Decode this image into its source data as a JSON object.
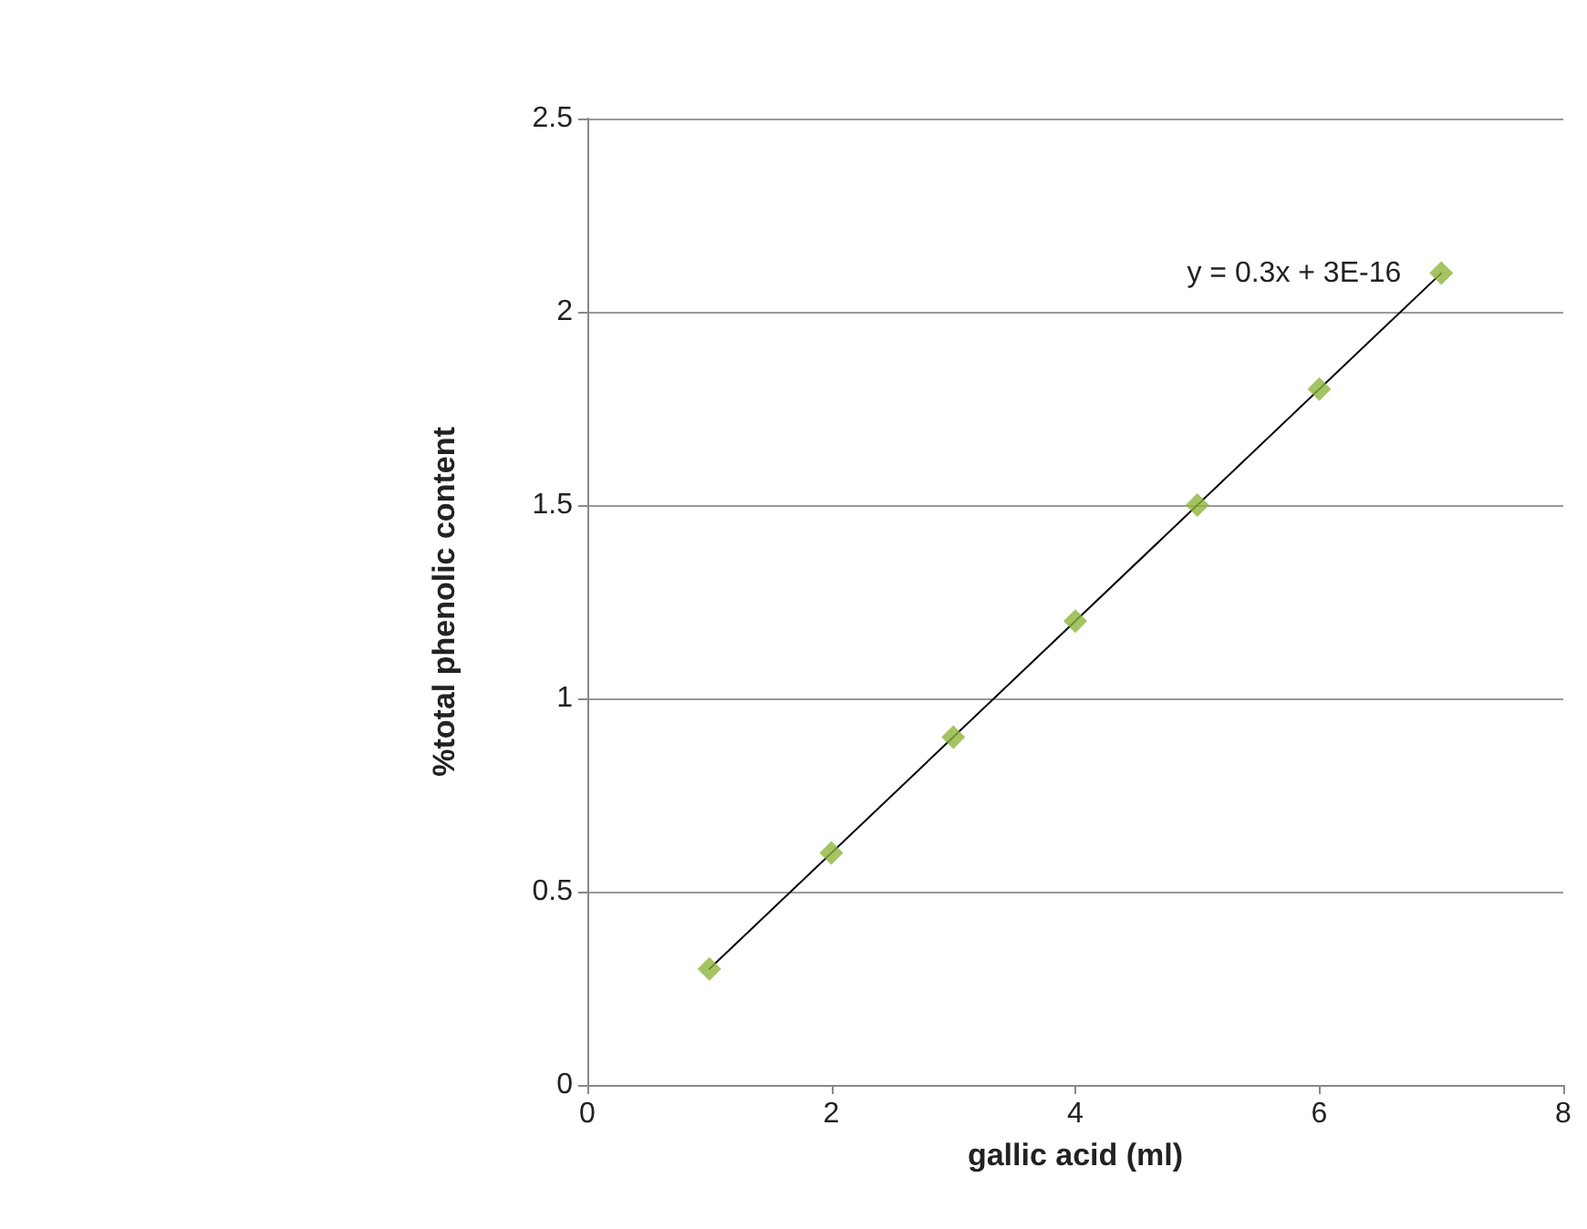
{
  "chart_data": {
    "type": "scatter",
    "xlabel": "gallic acid (ml)",
    "ylabel": "%total phenolic content",
    "series": [
      {
        "type": "scatter",
        "color": "#8db53c",
        "marker": "diamond",
        "x": [
          1,
          2,
          3,
          4,
          5,
          6,
          7
        ],
        "values": [
          0.3,
          0.6,
          0.9,
          1.2,
          1.5,
          1.8,
          2.1
        ]
      },
      {
        "type": "line",
        "color": "#000000",
        "marker": "none",
        "line_style": "solid",
        "x": [
          1,
          7
        ],
        "values": [
          0.3,
          2.1
        ]
      }
    ],
    "annotations": [
      {
        "text": "y = 0.3x + 3E-16",
        "x": 7,
        "y": 2.1
      }
    ],
    "xlim": [
      0,
      8
    ],
    "xticks": [
      0,
      2,
      4,
      6,
      8
    ],
    "ylim": [
      0,
      2.5
    ],
    "yticks": [
      0,
      0.5,
      1,
      1.5,
      2,
      2.5
    ],
    "grid": "y"
  }
}
